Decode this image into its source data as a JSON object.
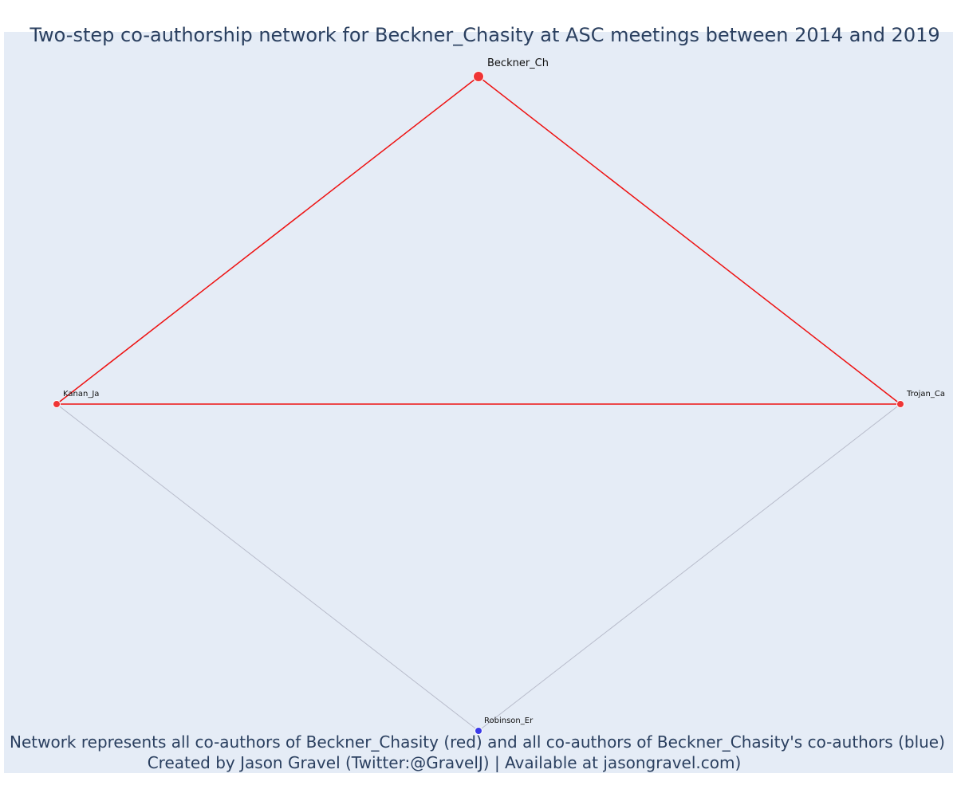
{
  "title": "Two-step co-authorship network for Beckner_Chasity at ASC meetings between 2014 and 2019",
  "caption": {
    "line1": "Network represents all co-authors of Beckner_Chasity (red) and all co-authors of Beckner_Chasity's co-authors (blue)",
    "line2": "Created by Jason Gravel (Twitter:@GravelJ) | Available at jasongravel.com)"
  },
  "colors": {
    "plot_background": "#e5ecf6",
    "title_text": "#2a3f5f",
    "coauthor": "#ef3535",
    "second_step": "#3a3ae8",
    "edge_primary": "#ee1111",
    "edge_secondary": "#b8bccb"
  },
  "nodes": [
    {
      "id": "Beckner_Ch",
      "label": "Beckner_Ch",
      "group": "coauthor",
      "focal": true
    },
    {
      "id": "Kanan_Ja",
      "label": "Kanan_Ja",
      "group": "coauthor",
      "focal": false
    },
    {
      "id": "Trojan_Ca",
      "label": "Trojan_Ca",
      "group": "coauthor",
      "focal": false
    },
    {
      "id": "Robinson_Er",
      "label": "Robinson_Er",
      "group": "second_step",
      "focal": false
    }
  ],
  "edges": [
    {
      "source": "Beckner_Ch",
      "target": "Kanan_Ja",
      "type": "primary"
    },
    {
      "source": "Beckner_Ch",
      "target": "Trojan_Ca",
      "type": "primary"
    },
    {
      "source": "Kanan_Ja",
      "target": "Trojan_Ca",
      "type": "primary"
    },
    {
      "source": "Kanan_Ja",
      "target": "Robinson_Er",
      "type": "secondary"
    },
    {
      "source": "Trojan_Ca",
      "target": "Robinson_Er",
      "type": "secondary"
    }
  ]
}
